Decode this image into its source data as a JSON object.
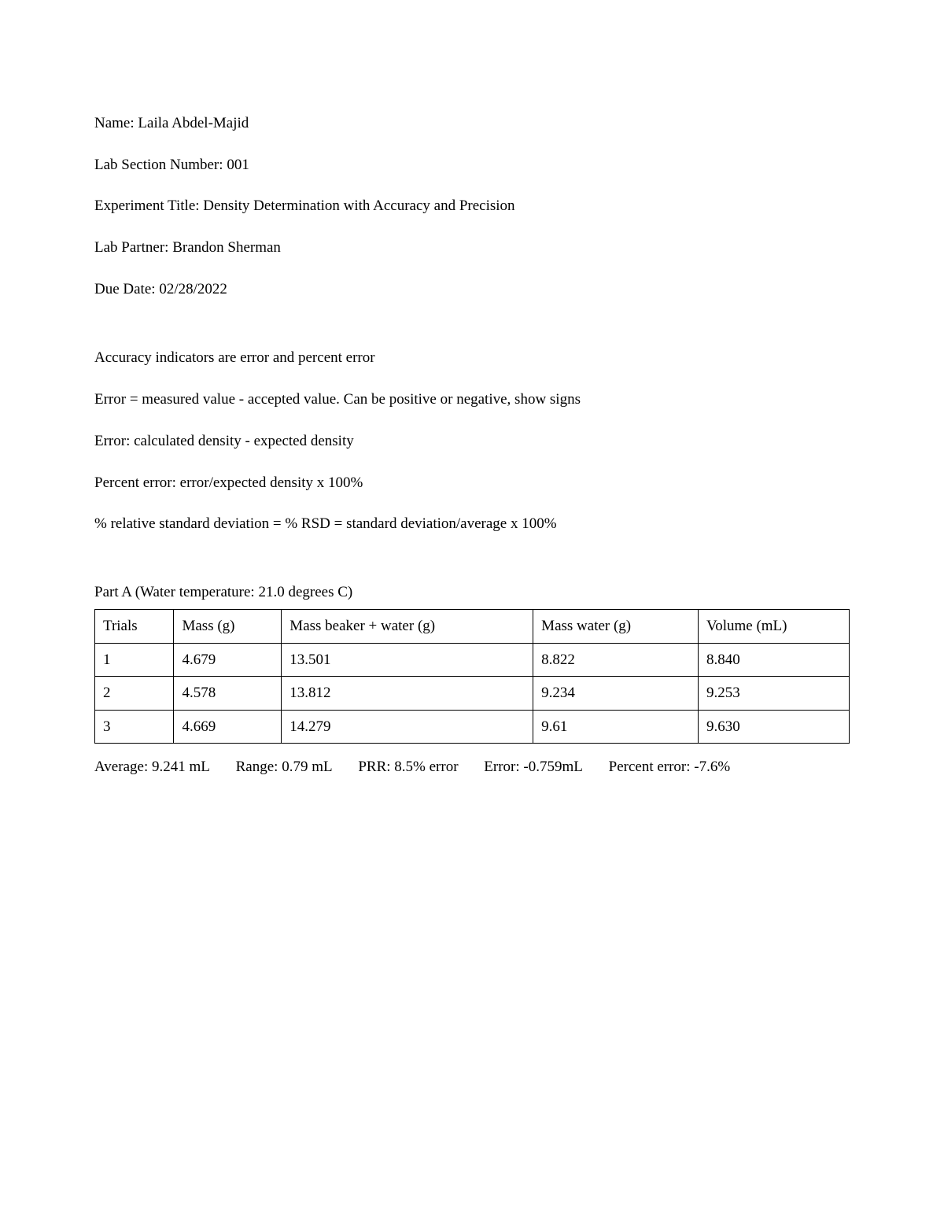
{
  "header": {
    "name_label": "Name: ",
    "name_value": "Laila Abdel-Majid",
    "section_label": "Lab Section Number: ",
    "section_value": "001",
    "title_label": "Experiment Title: ",
    "title_value": "Density Determination with Accuracy and Precision",
    "partner_label": "Lab Partner: ",
    "partner_value": "Brandon Sherman",
    "due_label": "Due Date: ",
    "due_value": "02/28/2022"
  },
  "notes": {
    "line1": "Accuracy indicators are error and percent error",
    "line2": "Error = measured value - accepted value. Can be positive or negative, show signs",
    "line3": "Error: calculated density - expected density",
    "line4": "Percent error: error/expected density x 100%",
    "line5": "% relative standard deviation = % RSD = standard deviation/average x 100%"
  },
  "partA": {
    "title": "Part A (Water temperature: 21.0 degrees C)",
    "columns": [
      "Trials",
      "Mass (g)",
      "Mass beaker + water (g)",
      "Mass water (g)",
      "Volume (mL)"
    ],
    "rows": [
      [
        "1",
        "4.679",
        "13.501",
        "8.822",
        "8.840"
      ],
      [
        "2",
        "4.578",
        "13.812",
        "9.234",
        "9.253"
      ],
      [
        "3",
        "4.669",
        "14.279",
        "9.61",
        "9.630"
      ]
    ],
    "stats": {
      "average_label": "Average: ",
      "average_value": "9.241 mL",
      "range_label": "Range: ",
      "range_value": "0.79 mL",
      "prr_label": "PRR: ",
      "prr_value": "8.5% error",
      "error_label": "Error: ",
      "error_value": "-0.759mL",
      "percent_label": "Percent error: ",
      "percent_value": "-7.6%"
    }
  }
}
